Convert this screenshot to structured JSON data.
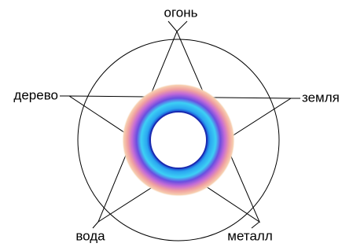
{
  "nodes": [
    {
      "label": "огонь"
    },
    {
      "label": "земля"
    },
    {
      "label": "металл"
    },
    {
      "label": "вода"
    },
    {
      "label": "дерево"
    }
  ]
}
